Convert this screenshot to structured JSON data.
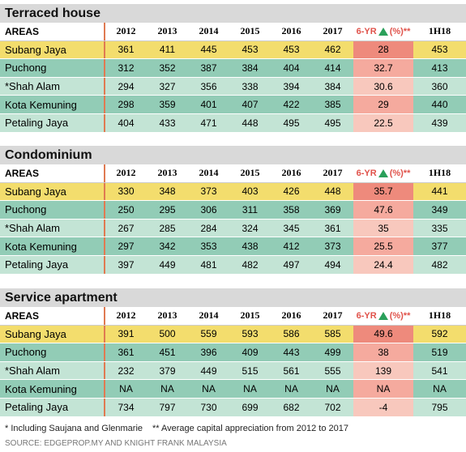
{
  "sections": [
    {
      "title": "Terraced house",
      "header": [
        "AREAS",
        "2012",
        "2013",
        "2014",
        "2015",
        "2016",
        "2017",
        "6-YR",
        "1H18"
      ],
      "growth_suffix": "(%)**",
      "rows": [
        [
          "Subang Jaya",
          361,
          411,
          445,
          453,
          453,
          462,
          28,
          453
        ],
        [
          "Puchong",
          312,
          352,
          387,
          384,
          404,
          414,
          32.7,
          413
        ],
        [
          "*Shah Alam",
          294,
          327,
          356,
          338,
          394,
          384,
          30.6,
          360
        ],
        [
          "Kota Kemuning",
          298,
          359,
          401,
          407,
          422,
          385,
          29,
          440
        ],
        [
          "Petaling Jaya",
          404,
          433,
          471,
          448,
          495,
          495,
          22.5,
          439
        ]
      ]
    },
    {
      "title": "Condominium",
      "header": [
        "AREAS",
        "2012",
        "2013",
        "2014",
        "2015",
        "2016",
        "2017",
        "6-YR",
        "1H18"
      ],
      "growth_suffix": "(%)**",
      "rows": [
        [
          "Subang Jaya",
          330,
          348,
          373,
          403,
          426,
          448,
          35.7,
          441
        ],
        [
          "Puchong",
          250,
          295,
          306,
          311,
          358,
          369,
          47.6,
          349
        ],
        [
          "*Shah Alam",
          267,
          285,
          284,
          324,
          345,
          361,
          35,
          335
        ],
        [
          "Kota Kemuning",
          297,
          342,
          353,
          438,
          412,
          373,
          25.5,
          377
        ],
        [
          "Petaling Jaya",
          397,
          449,
          481,
          482,
          497,
          494,
          24.4,
          482
        ]
      ]
    },
    {
      "title": "Service apartment",
      "header": [
        "AREAS",
        "2012",
        "2013",
        "2014",
        "2015",
        "2016",
        "2017",
        "6-YR",
        "1H18"
      ],
      "growth_suffix": "(%)**",
      "rows": [
        [
          "Subang Jaya",
          391,
          500,
          559,
          593,
          586,
          585,
          49.6,
          592
        ],
        [
          "Puchong",
          361,
          451,
          396,
          409,
          443,
          499,
          38,
          519
        ],
        [
          "*Shah Alam",
          232,
          379,
          449,
          515,
          561,
          555,
          139,
          541
        ],
        [
          "Kota Kemuning",
          "NA",
          "NA",
          "NA",
          "NA",
          "NA",
          "NA",
          "NA",
          "NA"
        ],
        [
          "Petaling Jaya",
          734,
          797,
          730,
          699,
          682,
          702,
          -4,
          795
        ]
      ]
    }
  ],
  "footnotes": [
    "* Including Saujana and Glenmarie",
    "** Average capital appreciation from 2012 to 2017"
  ],
  "source": "SOURCE: EDGEPROP.MY AND KNIGHT FRANK MALAYSIA"
}
